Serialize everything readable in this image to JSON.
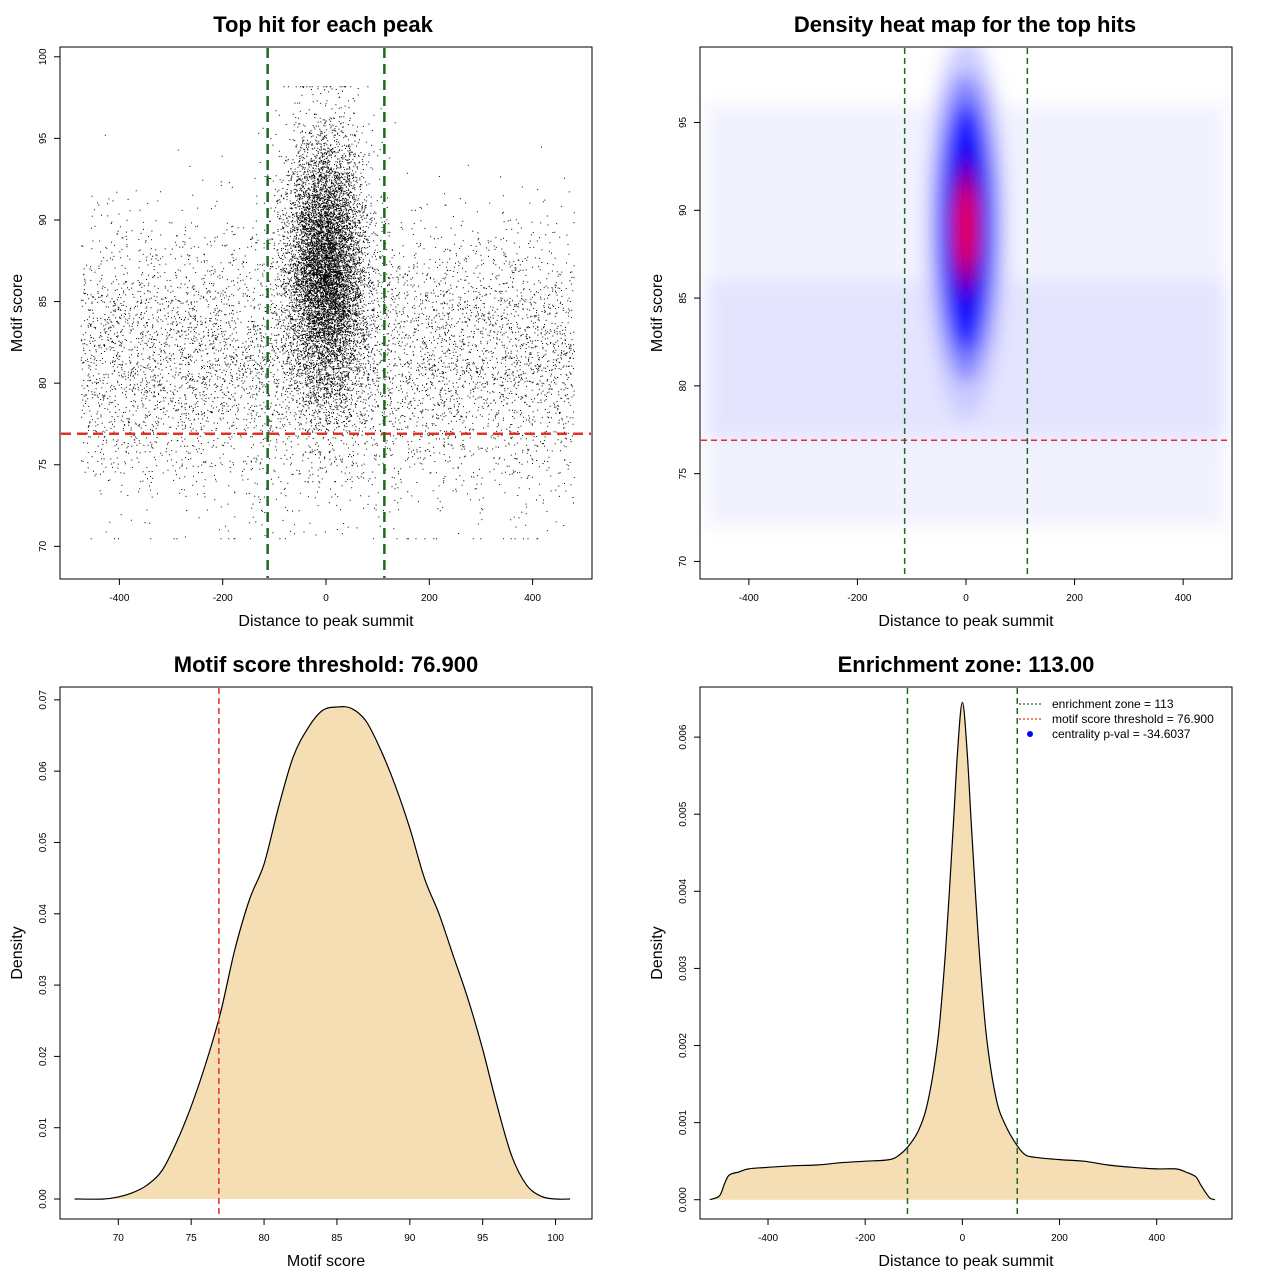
{
  "colors": {
    "threshold": "#e0302a",
    "zone": "#1b6b1b",
    "fill": "#f5deb3",
    "heat_low": "#ffffff",
    "heat_mid": "#0000ff",
    "heat_high": "#ff0000",
    "point": "#000000",
    "legend_dot": "#0000ff"
  },
  "chart_data": [
    {
      "id": "scatter",
      "type": "scatter",
      "title": "Top hit for each peak",
      "xlabel": "Distance to peak summit",
      "ylabel": "Motif score",
      "xlim": [
        -515,
        515
      ],
      "ylim": [
        68,
        100.6
      ],
      "xticks": [
        -400,
        -200,
        0,
        200,
        400
      ],
      "yticks": [
        70,
        75,
        80,
        85,
        90,
        95,
        100
      ],
      "xtick_labels": [
        "-400",
        "-200",
        "0",
        "200",
        "400"
      ],
      "ytick_labels": [
        "70",
        "75",
        "80",
        "85",
        "90",
        "95",
        "100"
      ],
      "threshold": 76.9,
      "zone": [
        -113,
        113
      ],
      "background_points": {
        "n": 6500,
        "x_range": [
          -475,
          480
        ],
        "y_mean": 81.5,
        "y_sd": 4.0
      },
      "central_points": {
        "n": 9000,
        "x_center": 0,
        "x_sd": 38,
        "y_mean": 87.0,
        "y_sd": 4.0
      }
    },
    {
      "id": "heatmap",
      "type": "heatmap",
      "title": "Density heat map for the top hits",
      "xlabel": "Distance to peak summit",
      "ylabel": "Motif score",
      "xlim": [
        -490,
        490
      ],
      "ylim": [
        69,
        99.3
      ],
      "xticks": [
        -400,
        -200,
        0,
        200,
        400
      ],
      "yticks": [
        70,
        75,
        80,
        85,
        90,
        95
      ],
      "xtick_labels": [
        "-400",
        "-200",
        "0",
        "200",
        "400"
      ],
      "ytick_labels": [
        "70",
        "75",
        "80",
        "85",
        "90",
        "95"
      ],
      "threshold": 76.9,
      "zone": [
        -113,
        113
      ],
      "hotspot": {
        "x": 0,
        "y": 89.0,
        "x_sd": 28,
        "y_sd": 4.0
      }
    },
    {
      "id": "score-density",
      "type": "area",
      "title": "Motif score threshold: 76.900",
      "xlabel": "Motif score",
      "ylabel": "Density",
      "xlim": [
        66,
        102.5
      ],
      "ylim": [
        -0.0028,
        0.0718
      ],
      "xticks": [
        70,
        75,
        80,
        85,
        90,
        95,
        100
      ],
      "yticks": [
        0.0,
        0.01,
        0.02,
        0.03,
        0.04,
        0.05,
        0.06,
        0.07
      ],
      "xtick_labels": [
        "70",
        "75",
        "80",
        "85",
        "90",
        "95",
        "100"
      ],
      "ytick_labels": [
        "0.00",
        "0.01",
        "0.02",
        "0.03",
        "0.04",
        "0.05",
        "0.06",
        "0.07"
      ],
      "threshold": 76.9,
      "x": [
        67,
        69,
        70,
        71,
        72,
        73,
        74,
        75,
        76,
        77,
        78,
        79,
        80,
        81,
        82,
        83,
        84,
        85,
        86,
        87,
        88,
        89,
        90,
        91,
        92,
        93,
        94,
        95,
        96,
        97,
        98,
        99,
        100,
        101
      ],
      "y": [
        0.0,
        0.0,
        0.0003,
        0.0009,
        0.002,
        0.004,
        0.008,
        0.013,
        0.019,
        0.026,
        0.035,
        0.042,
        0.047,
        0.055,
        0.062,
        0.066,
        0.0685,
        0.069,
        0.0688,
        0.067,
        0.063,
        0.058,
        0.052,
        0.045,
        0.04,
        0.034,
        0.028,
        0.021,
        0.013,
        0.006,
        0.002,
        0.0004,
        0.0,
        0.0
      ]
    },
    {
      "id": "distance-density",
      "type": "area",
      "title": "Enrichment zone: 113.00",
      "xlabel": "Distance to peak summit",
      "ylabel": "Density",
      "xlim": [
        -540,
        555
      ],
      "ylim": [
        -0.00025,
        0.00665
      ],
      "xticks": [
        -400,
        -200,
        0,
        200,
        400
      ],
      "yticks": [
        0.0,
        0.001,
        0.002,
        0.003,
        0.004,
        0.005,
        0.006
      ],
      "xtick_labels": [
        "-400",
        "-200",
        "0",
        "200",
        "400"
      ],
      "ytick_labels": [
        "0.000",
        "0.001",
        "0.002",
        "0.003",
        "0.004",
        "0.005",
        "0.006"
      ],
      "zone": [
        -113,
        113
      ],
      "x": [
        -520,
        -500,
        -490,
        -480,
        -460,
        -440,
        -400,
        -350,
        -300,
        -250,
        -200,
        -150,
        -130,
        -113,
        -90,
        -70,
        -50,
        -35,
        -20,
        -10,
        0,
        10,
        20,
        35,
        50,
        70,
        90,
        113,
        130,
        150,
        200,
        250,
        300,
        350,
        400,
        440,
        460,
        480,
        490,
        500,
        510,
        520
      ],
      "y": [
        0.0,
        5e-05,
        0.0002,
        0.00032,
        0.00036,
        0.0004,
        0.00042,
        0.00044,
        0.00045,
        0.00048,
        0.0005,
        0.00052,
        0.00058,
        0.00068,
        0.0009,
        0.0013,
        0.0021,
        0.0032,
        0.0047,
        0.0058,
        0.00645,
        0.0058,
        0.0047,
        0.0032,
        0.0021,
        0.0013,
        0.00095,
        0.0007,
        0.00058,
        0.00055,
        0.00052,
        0.0005,
        0.00045,
        0.00042,
        0.0004,
        0.0004,
        0.00036,
        0.0003,
        0.0002,
        0.0001,
        2e-05,
        0.0
      ],
      "legend": [
        {
          "label": "enrichment zone = 113",
          "kind": "line",
          "color_key": "zone"
        },
        {
          "label": "motif score threshold = 76.900",
          "kind": "line",
          "color_key": "threshold"
        },
        {
          "label": "centrality p-val = -34.6037",
          "kind": "dot",
          "color_key": "legend_dot"
        }
      ]
    }
  ]
}
